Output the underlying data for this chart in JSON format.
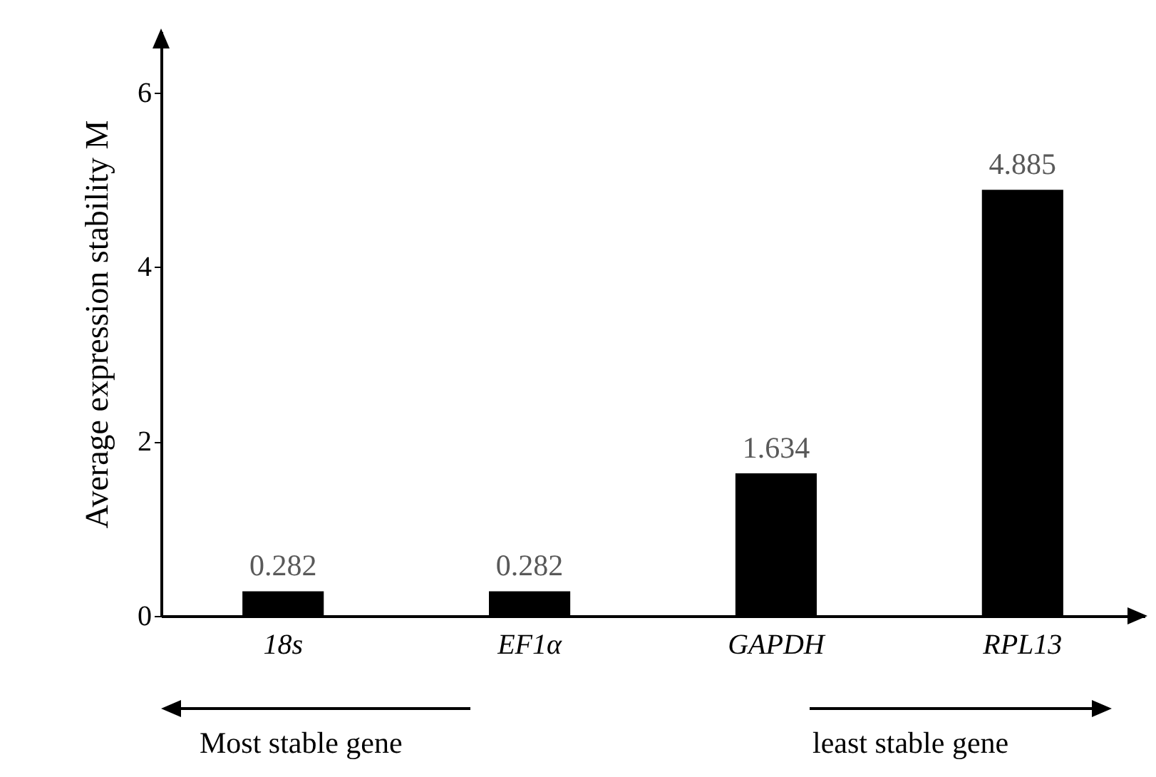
{
  "chart_data": {
    "type": "bar",
    "ylabel": "Average expression stability M",
    "categories": [
      "18s",
      "EF1α",
      "GAPDH",
      "RPL13"
    ],
    "values": [
      0.282,
      0.282,
      1.634,
      4.885
    ],
    "color": "#000000",
    "ylim": [
      0,
      6.7
    ],
    "yticks": [
      0,
      2,
      4,
      6
    ],
    "grid": false,
    "data_labels": true,
    "annotations": [
      "Most stable gene",
      "least stable gene"
    ]
  }
}
